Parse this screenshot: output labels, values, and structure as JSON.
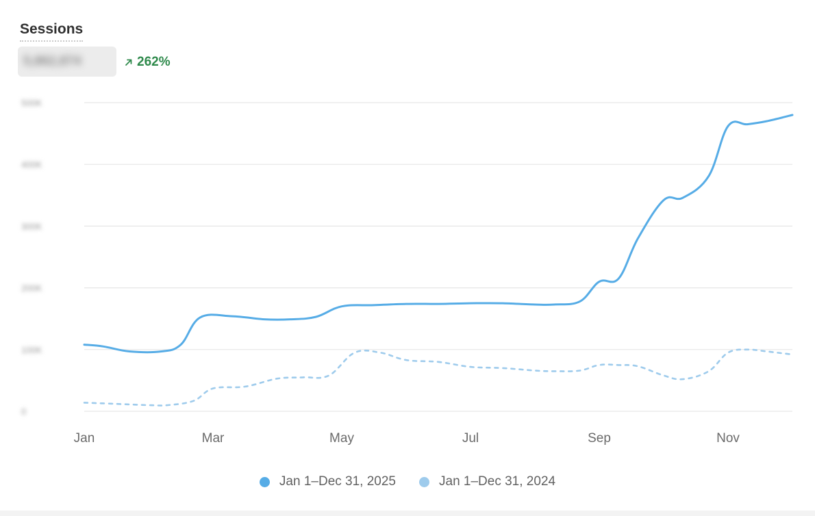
{
  "header": {
    "title": "Sessions",
    "value": "5,862,874",
    "change": "262%"
  },
  "colors": {
    "current": "#56ace6",
    "previous": "#9ecbec",
    "change_positive": "#2f8a4c",
    "grid": "#e6e6e6"
  },
  "chart_data": {
    "type": "line",
    "title": "Sessions",
    "xlabel": "",
    "ylabel": "",
    "x_tick_labels": [
      "Jan",
      "Mar",
      "May",
      "Jul",
      "Sep",
      "Nov"
    ],
    "x_tick_months": [
      1,
      3,
      5,
      7,
      9,
      11
    ],
    "x_range": [
      1,
      12
    ],
    "y_tick_labels": [
      "0",
      "100K",
      "200K",
      "300K",
      "400K",
      "500K"
    ],
    "y_tick_values": [
      0,
      100000,
      200000,
      300000,
      400000,
      500000
    ],
    "ylim": [
      0,
      500000
    ],
    "grid": true,
    "legend_position": "bottom",
    "series": [
      {
        "name": "Jan 1–Dec 31, 2025",
        "style": "solid",
        "color": "#56ace6",
        "x": [
          1,
          1.3,
          1.7,
          2.2,
          2.5,
          2.8,
          3.3,
          3.8,
          4.2,
          4.6,
          5,
          5.5,
          6,
          6.5,
          7,
          7.5,
          8,
          8.3,
          8.7,
          9,
          9.3,
          9.6,
          10,
          10.3,
          10.7,
          11,
          11.3,
          11.6,
          12
        ],
        "y": [
          108000,
          105000,
          97000,
          97000,
          108000,
          152000,
          154000,
          149000,
          149000,
          153000,
          170000,
          172000,
          174000,
          174000,
          175000,
          175000,
          173000,
          173000,
          178000,
          210000,
          215000,
          280000,
          342000,
          346000,
          381000,
          462000,
          465000,
          470000,
          480000
        ]
      },
      {
        "name": "Jan 1–Dec 31, 2024",
        "style": "dashed",
        "color": "#9ecbec",
        "x": [
          1,
          1.5,
          2,
          2.3,
          2.7,
          3,
          3.5,
          4,
          4.4,
          4.8,
          5.2,
          5.6,
          6,
          6.5,
          7,
          7.5,
          8,
          8.3,
          8.7,
          9,
          9.3,
          9.6,
          10,
          10.3,
          10.7,
          11,
          11.3,
          11.6,
          12
        ],
        "y": [
          14000,
          12000,
          10000,
          10000,
          17000,
          37000,
          40000,
          53000,
          55000,
          58000,
          95000,
          95000,
          83000,
          80000,
          72000,
          70000,
          66000,
          65000,
          66000,
          75000,
          75000,
          73000,
          58000,
          52000,
          65000,
          95000,
          100000,
          97000,
          92000
        ]
      }
    ]
  }
}
